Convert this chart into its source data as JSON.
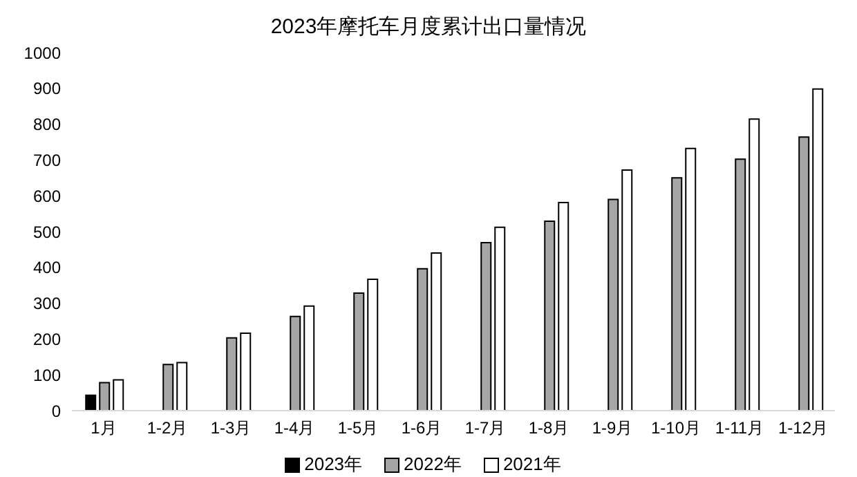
{
  "chart_data": {
    "type": "bar",
    "title": "2023年摩托车月度累计出口量情况",
    "categories": [
      "1月",
      "1-2月",
      "1-3月",
      "1-4月",
      "1-5月",
      "1-6月",
      "1-7月",
      "1-8月",
      "1-9月",
      "1-10月",
      "1-11月",
      "1-12月"
    ],
    "series": [
      {
        "name": "2023年",
        "color": "#000000",
        "values": [
          43,
          null,
          null,
          null,
          null,
          null,
          null,
          null,
          null,
          null,
          null,
          null
        ]
      },
      {
        "name": "2022年",
        "color": "#a6a6a6",
        "values": [
          78,
          129,
          203,
          263,
          328,
          396,
          469,
          529,
          590,
          650,
          702,
          764
        ]
      },
      {
        "name": "2021年",
        "color": "#ffffff",
        "values": [
          86,
          134,
          216,
          292,
          367,
          440,
          512,
          581,
          672,
          732,
          814,
          898
        ]
      }
    ],
    "ylim": [
      0,
      1000
    ],
    "yticks": [
      0,
      100,
      200,
      300,
      400,
      500,
      600,
      700,
      800,
      900,
      1000
    ],
    "grid": false,
    "legend": "bottom"
  }
}
